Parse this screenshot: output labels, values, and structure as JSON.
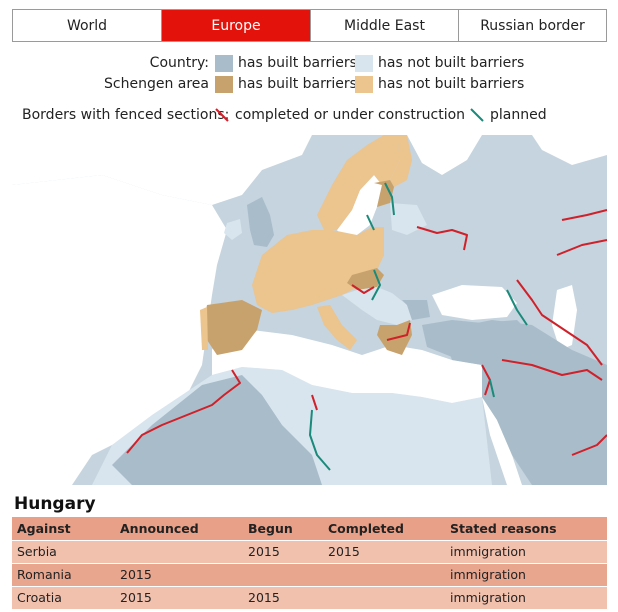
{
  "tabs": [
    {
      "label": "World",
      "active": false
    },
    {
      "label": "Europe",
      "active": true
    },
    {
      "label": "Middle East",
      "active": false
    },
    {
      "label": "Russian border",
      "active": false
    }
  ],
  "legend": {
    "country_label": "Country:",
    "schengen_label": "Schengen area",
    "has_built": "has built barriers",
    "has_not_built": "has not built barriers",
    "borders_label": "Borders with fenced sections:",
    "completed": "completed or under construction",
    "planned": "planned",
    "colors": {
      "country_built": "#a9bcc9",
      "country_not_built": "#d8e5ee",
      "schengen_built": "#c8a26c",
      "schengen_not_built": "#ebc48e",
      "completed_line": "#d0202a",
      "planned_line": "#1a8a7a"
    }
  },
  "section_title": "Hungary",
  "table": {
    "headers": [
      "Against",
      "Announced",
      "Begun",
      "Completed",
      "Stated reasons"
    ],
    "rows": [
      [
        "Serbia",
        "",
        "2015",
        "2015",
        "immigration"
      ],
      [
        "Romania",
        "2015",
        "",
        "",
        "immigration"
      ],
      [
        "Croatia",
        "2015",
        "2015",
        "",
        "immigration"
      ]
    ]
  }
}
